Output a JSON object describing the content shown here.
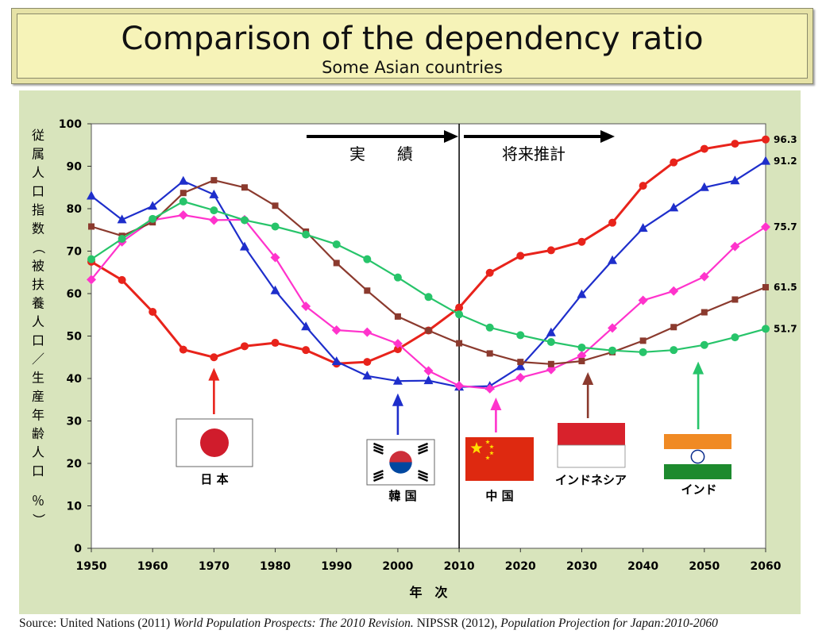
{
  "title": "Comparison of the dependency ratio",
  "subtitle": "Some Asian countries",
  "source": {
    "prefix": "Source: United Nations (2011) ",
    "work1": "World Population Prospects: The 2010 Revision.",
    "middle": " NIPSSR (2012), ",
    "work2": "Population Projection for Japan:2010-2060"
  },
  "colors": {
    "japan": "#e8231b",
    "korea": "#1e2ecb",
    "china": "#ff33cc",
    "indonesia": "#8b3a2e",
    "india": "#27c46a"
  },
  "chart_data": {
    "type": "line",
    "title": "",
    "xlabel": "年　次",
    "ylabel": "従属人口指数（被扶養人口／生産年齢人口 ％）",
    "xlim": [
      1950,
      2060
    ],
    "ylim": [
      0,
      100
    ],
    "x_ticks": [
      1950,
      1960,
      1970,
      1980,
      1990,
      2000,
      2010,
      2020,
      2030,
      2040,
      2050,
      2060
    ],
    "y_ticks": [
      0,
      10,
      20,
      30,
      40,
      50,
      60,
      70,
      80,
      90,
      100
    ],
    "grid": false,
    "divider_year": 2010,
    "period_labels": {
      "past": "実　　績",
      "future": "将来推計"
    },
    "x": [
      1950,
      1955,
      1960,
      1965,
      1970,
      1975,
      1980,
      1985,
      1990,
      1995,
      2000,
      2005,
      2010,
      2015,
      2020,
      2025,
      2030,
      2035,
      2040,
      2045,
      2050,
      2055,
      2060
    ],
    "series": [
      {
        "name": "日 本",
        "color_key": "japan",
        "marker": "circle",
        "end_label": "96.3",
        "values": [
          67.5,
          63.2,
          55.7,
          46.8,
          45.0,
          47.6,
          48.4,
          46.7,
          43.5,
          43.9,
          46.9,
          51.3,
          56.7,
          64.9,
          68.9,
          70.2,
          72.2,
          76.7,
          85.4,
          90.9,
          94.1,
          95.3,
          96.3
        ]
      },
      {
        "name": "韓 国",
        "color_key": "korea",
        "marker": "triangle",
        "end_label": "91.2",
        "values": [
          83.0,
          77.4,
          80.6,
          86.5,
          83.3,
          71.0,
          60.7,
          52.2,
          44.0,
          40.6,
          39.4,
          39.5,
          38.0,
          38.2,
          42.8,
          50.8,
          59.8,
          67.8,
          75.4,
          80.2,
          85.0,
          86.6,
          91.2
        ]
      },
      {
        "name": "中 国",
        "color_key": "china",
        "marker": "diamond",
        "end_label": "75.7",
        "values": [
          63.3,
          72.2,
          77.3,
          78.5,
          77.3,
          77.4,
          68.5,
          57.0,
          51.4,
          50.9,
          48.2,
          41.8,
          38.3,
          37.6,
          40.2,
          42.1,
          45.4,
          51.9,
          58.4,
          60.6,
          64.0,
          71.1,
          75.7
        ]
      },
      {
        "name": "インドネシア",
        "color_key": "indonesia",
        "marker": "square",
        "end_label": "61.5",
        "values": [
          75.8,
          73.6,
          76.8,
          83.7,
          86.7,
          85.0,
          80.7,
          74.6,
          67.2,
          60.7,
          54.6,
          51.3,
          48.3,
          45.9,
          43.9,
          43.4,
          44.1,
          46.2,
          48.9,
          52.1,
          55.6,
          58.6,
          61.5
        ]
      },
      {
        "name": "インド",
        "color_key": "india",
        "marker": "circle",
        "end_label": "51.7",
        "values": [
          68.1,
          72.9,
          77.6,
          81.7,
          79.6,
          77.3,
          75.8,
          73.9,
          71.6,
          68.1,
          63.8,
          59.2,
          55.1,
          52.0,
          50.2,
          48.6,
          47.3,
          46.6,
          46.2,
          46.7,
          47.9,
          49.7,
          51.7
        ]
      }
    ],
    "callouts": [
      {
        "label": "日 本",
        "color_key": "japan",
        "flag": "japan",
        "arrow_year": 1970,
        "arrow_value": 44
      },
      {
        "label": "韓 国",
        "color_key": "korea",
        "flag": "korea",
        "arrow_year": 2000,
        "arrow_value": 38
      },
      {
        "label": "中 国",
        "color_key": "china",
        "flag": "china",
        "arrow_year": 2016,
        "arrow_value": 37
      },
      {
        "label": "インドネシア",
        "color_key": "indonesia",
        "flag": "indonesia",
        "arrow_year": 2031,
        "arrow_value": 43
      },
      {
        "label": "インド",
        "color_key": "india",
        "flag": "india",
        "arrow_year": 2049,
        "arrow_value": 45.5
      }
    ]
  }
}
